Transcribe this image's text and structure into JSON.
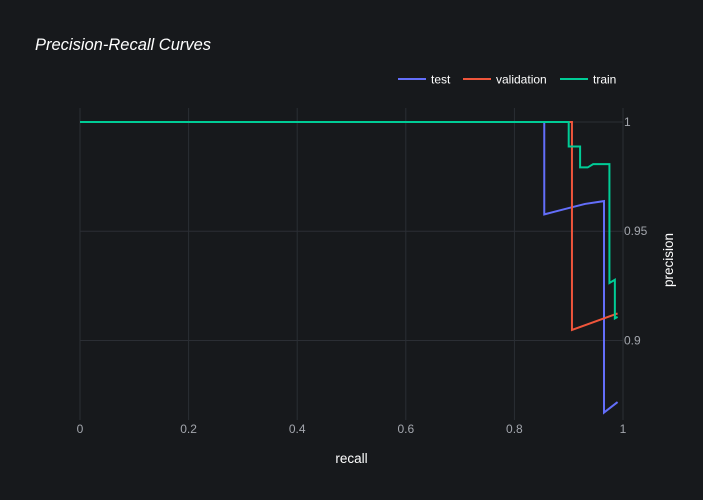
{
  "chart_data": {
    "type": "line",
    "title": "Precision-Recall Curves",
    "xlabel": "recall",
    "ylabel": "precision",
    "xlim": [
      0,
      1
    ],
    "ylim": [
      0.8636,
      1.0064
    ],
    "x_ticks": [
      0,
      0.2,
      0.4,
      0.6,
      0.8,
      1
    ],
    "x_tick_labels": [
      "0",
      "0.2",
      "0.4",
      "0.6",
      "0.8",
      "1"
    ],
    "y_ticks": [
      1,
      0.95,
      0.9
    ],
    "y_tick_labels": [
      "1",
      "0.95",
      "0.9"
    ],
    "legend_position": "top-right",
    "grid": true,
    "series": [
      {
        "name": "test",
        "color": "#636efa",
        "points": [
          [
            0,
            1
          ],
          [
            0.855,
            1
          ],
          [
            0.855,
            0.9577
          ],
          [
            0.875,
            0.959
          ],
          [
            0.9,
            0.9606
          ],
          [
            0.93,
            0.9625
          ],
          [
            0.965,
            0.9638
          ],
          [
            0.965,
            0.867
          ],
          [
            0.99,
            0.8718
          ]
        ]
      },
      {
        "name": "validation",
        "color": "#ef553b",
        "points": [
          [
            0,
            1
          ],
          [
            0.906,
            1
          ],
          [
            0.906,
            0.9048
          ],
          [
            0.99,
            0.9124
          ]
        ]
      },
      {
        "name": "train",
        "color": "#00cc96",
        "points": [
          [
            0,
            1
          ],
          [
            0.9,
            1
          ],
          [
            0.9,
            0.9888
          ],
          [
            0.921,
            0.9888
          ],
          [
            0.921,
            0.9792
          ],
          [
            0.935,
            0.9792
          ],
          [
            0.945,
            0.9807
          ],
          [
            0.975,
            0.9807
          ],
          [
            0.975,
            0.9263
          ],
          [
            0.985,
            0.9278
          ],
          [
            0.985,
            0.9101
          ],
          [
            0.99,
            0.9108
          ]
        ]
      }
    ]
  },
  "colors": {
    "background": "#17191c",
    "grid": "#2b2e34",
    "tick_text": "#a3a6ad",
    "title_text": "#ffffff",
    "axis_title_text": "#ffffff"
  }
}
